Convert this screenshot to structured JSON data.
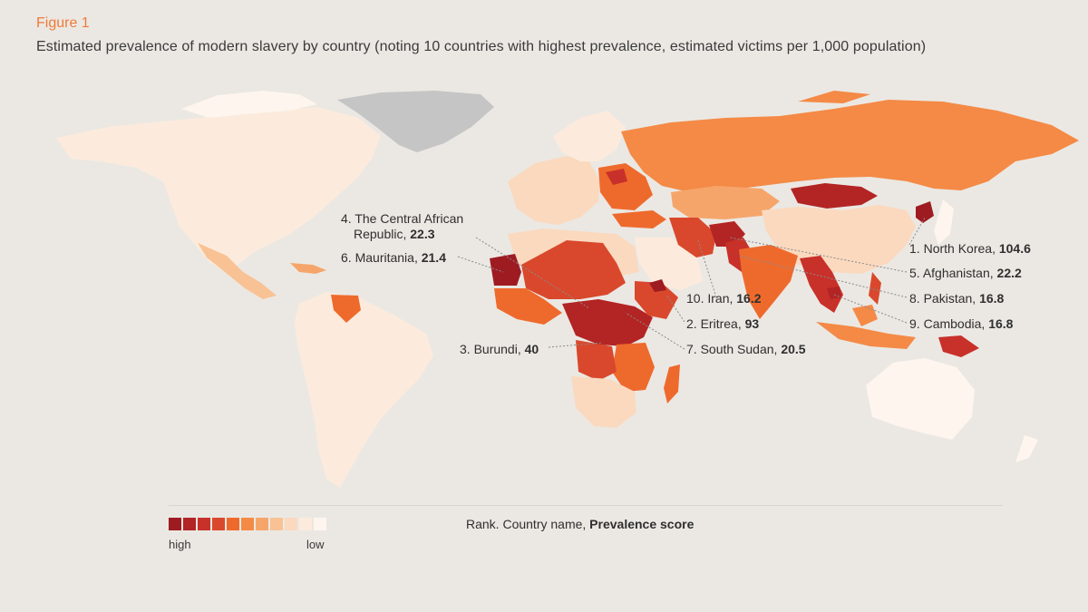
{
  "figure": {
    "label": "Figure 1",
    "title": "Estimated prevalence of modern slavery by country (noting 10 countries with highest prevalence, estimated victims per 1,000 population)"
  },
  "colors": {
    "background": "#ebe8e3",
    "scale": [
      "#9e1b22",
      "#b32424",
      "#c8302a",
      "#d9482c",
      "#ee6a2c",
      "#f48a46",
      "#f6a56a",
      "#f8c295",
      "#fad9bf",
      "#fcebdc",
      "#fdf5ee"
    ],
    "greenland": "#c5c5c5"
  },
  "legend": {
    "high": "high",
    "low": "low",
    "note_prefix": "Rank. Country name, ",
    "note_bold": "Prevalence score"
  },
  "callouts": [
    {
      "rank": "4",
      "name": "The Central African",
      "name2": "Republic",
      "score": "22.3"
    },
    {
      "rank": "6",
      "name": "Mauritania",
      "score": "21.4"
    },
    {
      "rank": "3",
      "name": "Burundi",
      "score": "40"
    },
    {
      "rank": "2",
      "name": "Eritrea",
      "score": "93"
    },
    {
      "rank": "7",
      "name": "South Sudan",
      "score": "20.5"
    },
    {
      "rank": "10",
      "name": "Iran",
      "score": "16.2"
    },
    {
      "rank": "1",
      "name": "North Korea",
      "score": "104.6"
    },
    {
      "rank": "5",
      "name": "Afghanistan",
      "score": "22.2"
    },
    {
      "rank": "8",
      "name": "Pakistan",
      "score": "16.8"
    },
    {
      "rank": "9",
      "name": "Cambodia",
      "score": "16.8"
    }
  ]
}
